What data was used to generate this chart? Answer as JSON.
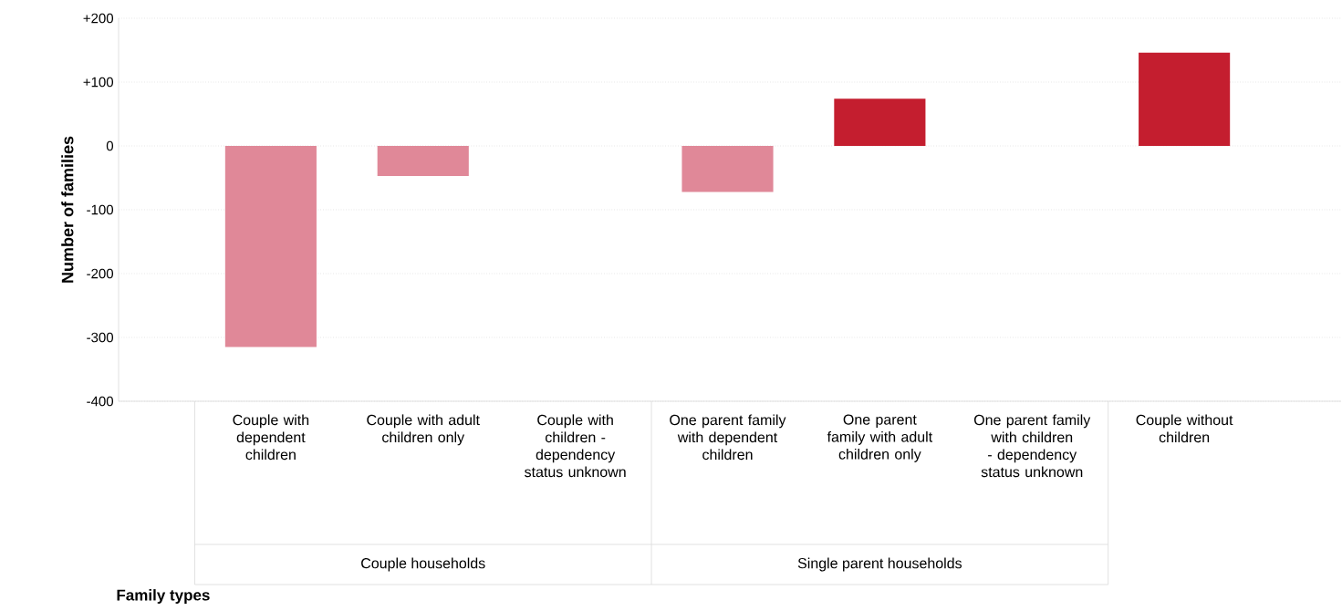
{
  "chart_data": {
    "type": "bar",
    "ylabel": "Number of families",
    "categories": [
      "Couple with dependent children",
      "Couple with adult children only",
      "Couple with children - dependency status unknown",
      "One parent family with dependent children",
      "One parent family with adult children only",
      "One parent family with children - dependency status unknown",
      "Couple without children"
    ],
    "values": [
      -315,
      -47,
      0,
      -72,
      74,
      0,
      146
    ],
    "colors": [
      "#e08898",
      "#e08898",
      "#e08898",
      "#e08898",
      "#c41e2f",
      "#e08898",
      "#c41e2f"
    ],
    "ylim": [
      -400,
      200
    ],
    "yticks": [
      -400,
      -300,
      -200,
      -100,
      0,
      {
        "value": 100,
        "label": "+100"
      },
      {
        "value": 200,
        "label": "+200"
      }
    ],
    "grid": "y",
    "annotations": [
      "Couple households",
      "Single parent households",
      "Family types"
    ]
  }
}
